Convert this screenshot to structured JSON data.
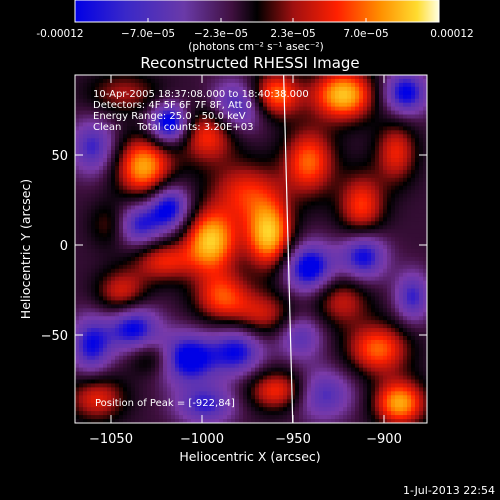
{
  "colorbar": {
    "ticks": [
      "-0.00012",
      "−7.0e−05",
      "−2.3e−05",
      "2.3e−05",
      "7.0e−05",
      "0.00012"
    ],
    "units": "(photons cm⁻² s⁻¹ asec⁻²)"
  },
  "chart_data": {
    "type": "heatmap",
    "title": "Reconstructed RHESSI Image",
    "xlabel": "Heliocentric X (arcsec)",
    "ylabel": "Heliocentric Y (arcsec)",
    "xlim": [
      -1072,
      -878
    ],
    "ylim": [
      -98,
      95
    ],
    "xticks": [
      "−1050",
      "−1000",
      "−950",
      "−900"
    ],
    "yticks": [
      "50",
      "0",
      "−50"
    ],
    "colorscale": [
      "#0000e6",
      "#5a32b4",
      "#7a3aa8",
      "#401040",
      "#000000",
      "#a01010",
      "#ff2000",
      "#ff9000",
      "#ffdc30",
      "#ffffe0"
    ],
    "vmin": -0.00012,
    "vmax": 0.00012,
    "annotations": [
      "10-Apr-2005 18:37:08.000 to 18:40:38.000",
      "Detectors: 4F 5F 6F 7F 8F, Att 0",
      "Energy Range: 25.0 - 50.0 keV",
      "Clean     Total counts: 3.20E+03"
    ],
    "peak_label": "Position of Peak = [-922,84]",
    "peak_position": [
      -922,
      84
    ],
    "limb_line": [
      [
        -957,
        95
      ],
      [
        -952,
        -98
      ]
    ],
    "sources": [
      {
        "x": -1034,
        "y": 44,
        "sx": 11,
        "sy": 12,
        "a": 0.00011
      },
      {
        "x": -997,
        "y": 3,
        "sx": 10,
        "sy": 12,
        "a": 0.00012
      },
      {
        "x": -965,
        "y": 6,
        "sx": 9,
        "sy": 13,
        "a": 0.00012
      },
      {
        "x": -978,
        "y": 30,
        "sx": 14,
        "sy": 12,
        "a": 7e-05
      },
      {
        "x": -999,
        "y": 62,
        "sx": 11,
        "sy": 11,
        "a": 8e-05
      },
      {
        "x": -962,
        "y": 84,
        "sx": 10,
        "sy": 9,
        "a": 0.0001
      },
      {
        "x": -924,
        "y": 84,
        "sx": 12,
        "sy": 10,
        "a": 0.00012
      },
      {
        "x": -943,
        "y": 47,
        "sx": 10,
        "sy": 13,
        "a": 9e-05
      },
      {
        "x": -914,
        "y": 22,
        "sx": 9,
        "sy": 13,
        "a": 8e-05
      },
      {
        "x": -1023,
        "y": -8,
        "sx": 12,
        "sy": 8,
        "a": 7e-05
      },
      {
        "x": -991,
        "y": -28,
        "sx": 11,
        "sy": 10,
        "a": 8e-05
      },
      {
        "x": -1046,
        "y": -26,
        "sx": 10,
        "sy": 9,
        "a": 7e-05
      },
      {
        "x": -968,
        "y": -38,
        "sx": 12,
        "sy": 9,
        "a": 6e-05
      },
      {
        "x": -925,
        "y": -30,
        "sx": 11,
        "sy": 10,
        "a": 6e-05
      },
      {
        "x": -905,
        "y": -57,
        "sx": 12,
        "sy": 10,
        "a": 9e-05
      },
      {
        "x": -893,
        "y": -87,
        "sx": 10,
        "sy": 9,
        "a": 0.00011
      },
      {
        "x": -960,
        "y": -80,
        "sx": 12,
        "sy": 8,
        "a": 8e-05
      },
      {
        "x": -1060,
        "y": -84,
        "sx": 11,
        "sy": 9,
        "a": 7e-05
      },
      {
        "x": -1030,
        "y": -62,
        "sx": 9,
        "sy": 7,
        "a": 5e-05
      },
      {
        "x": -1045,
        "y": 85,
        "sx": 14,
        "sy": 8,
        "a": 5e-05
      },
      {
        "x": -895,
        "y": 52,
        "sx": 8,
        "sy": 12,
        "a": 7e-05
      },
      {
        "x": -1052,
        "y": 12,
        "sx": 8,
        "sy": 9,
        "a": 5e-05
      },
      {
        "x": -1020,
        "y": 68,
        "sx": 8,
        "sy": 8,
        "a": -0.00011
      },
      {
        "x": -1038,
        "y": 12,
        "sx": 10,
        "sy": 9,
        "a": -8e-05
      },
      {
        "x": -1062,
        "y": 55,
        "sx": 9,
        "sy": 11,
        "a": -7e-05
      },
      {
        "x": -1063,
        "y": -55,
        "sx": 8,
        "sy": 12,
        "a": -8e-05
      },
      {
        "x": -1040,
        "y": -45,
        "sx": 10,
        "sy": 10,
        "a": -9e-05
      },
      {
        "x": -1010,
        "y": -62,
        "sx": 12,
        "sy": 10,
        "a": -0.0001
      },
      {
        "x": -982,
        "y": -58,
        "sx": 10,
        "sy": 10,
        "a": -8e-05
      },
      {
        "x": -943,
        "y": -12,
        "sx": 10,
        "sy": 10,
        "a": -0.0001
      },
      {
        "x": -913,
        "y": -5,
        "sx": 9,
        "sy": 10,
        "a": -9e-05
      },
      {
        "x": -1020,
        "y": 22,
        "sx": 8,
        "sy": 9,
        "a": -9e-05
      },
      {
        "x": -982,
        "y": 78,
        "sx": 11,
        "sy": 10,
        "a": -8e-05
      },
      {
        "x": -890,
        "y": 85,
        "sx": 9,
        "sy": 9,
        "a": -9e-05
      },
      {
        "x": -936,
        "y": -82,
        "sx": 12,
        "sy": 10,
        "a": -7e-05
      },
      {
        "x": -1000,
        "y": -88,
        "sx": 12,
        "sy": 8,
        "a": -7e-05
      },
      {
        "x": -948,
        "y": -50,
        "sx": 9,
        "sy": 9,
        "a": -6e-05
      },
      {
        "x": -886,
        "y": -28,
        "sx": 7,
        "sy": 10,
        "a": -7e-05
      }
    ]
  },
  "footer": {
    "timestamp": "1-Jul-2013 22:54"
  }
}
